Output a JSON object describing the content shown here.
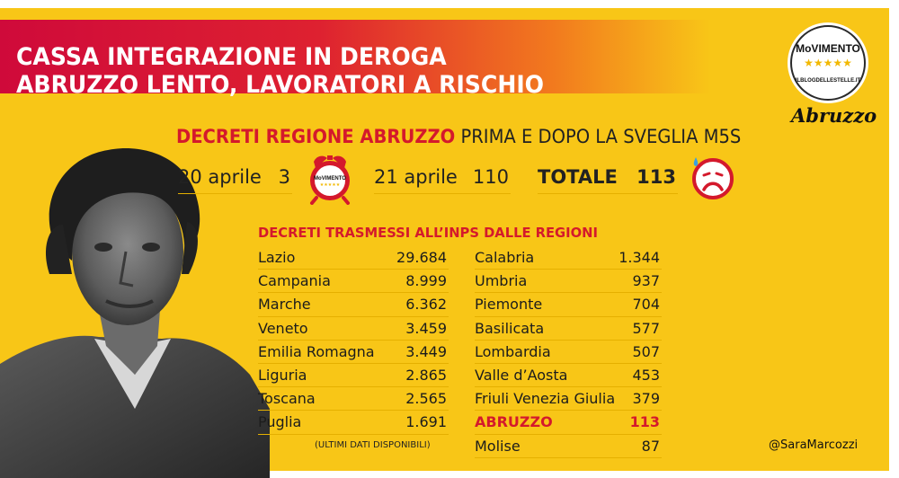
{
  "title": {
    "line1": "CASSA INTEGRAZIONE IN DEROGA",
    "line2": "ABRUZZO LENTO, LAVORATORI A RISCHIO"
  },
  "logo": {
    "word": "MoVIMENTO",
    "stars": "★★★★★",
    "blog": "ILBLOGDELLESTELLE.IT",
    "region": "Abruzzo"
  },
  "subtitle": {
    "strong": "DECRETI REGIONE ABRUZZO",
    "rest": "PRIMA E DOPO LA SVEGLIA M5S"
  },
  "stats": {
    "before": {
      "label": "20 aprile",
      "value": "3"
    },
    "after": {
      "label": "21 aprile",
      "value": "110"
    },
    "total": {
      "label": "TOTALE",
      "value": "113"
    }
  },
  "clock_label": "MoVIMENTO",
  "table": {
    "heading": "DECRETI TRASMESSI ALL’INPS DALLE REGIONI",
    "left": [
      {
        "name": "Lazio",
        "value": "29.684"
      },
      {
        "name": "Campania",
        "value": "8.999"
      },
      {
        "name": "Marche",
        "value": "6.362"
      },
      {
        "name": "Veneto",
        "value": "3.459"
      },
      {
        "name": "Emilia Romagna",
        "value": "3.449"
      },
      {
        "name": "Liguria",
        "value": "2.865"
      },
      {
        "name": "Toscana",
        "value": "2.565"
      },
      {
        "name": "Puglia",
        "value": "1.691"
      }
    ],
    "right": [
      {
        "name": "Calabria",
        "value": "1.344"
      },
      {
        "name": "Umbria",
        "value": "937"
      },
      {
        "name": "Piemonte",
        "value": "704"
      },
      {
        "name": "Basilicata",
        "value": "577"
      },
      {
        "name": "Lombardia",
        "value": "507"
      },
      {
        "name": "Valle d’Aosta",
        "value": "453"
      },
      {
        "name": "Friuli Venezia Giulia",
        "value": "379"
      },
      {
        "name": "ABRUZZO",
        "value": "113",
        "highlight": true
      },
      {
        "name": "Molise",
        "value": "87"
      }
    ],
    "footnote": "(ULTIMI DATI DISPONIBILI)"
  },
  "handle": "@SaraMarcozzi",
  "colors": {
    "background": "#f8c617",
    "accent_red": "#d4192c",
    "banner_start": "#cf0a3a",
    "banner_end": "#f27a1e"
  },
  "icons": [
    "alarm-clock-icon",
    "sad-face-icon"
  ]
}
